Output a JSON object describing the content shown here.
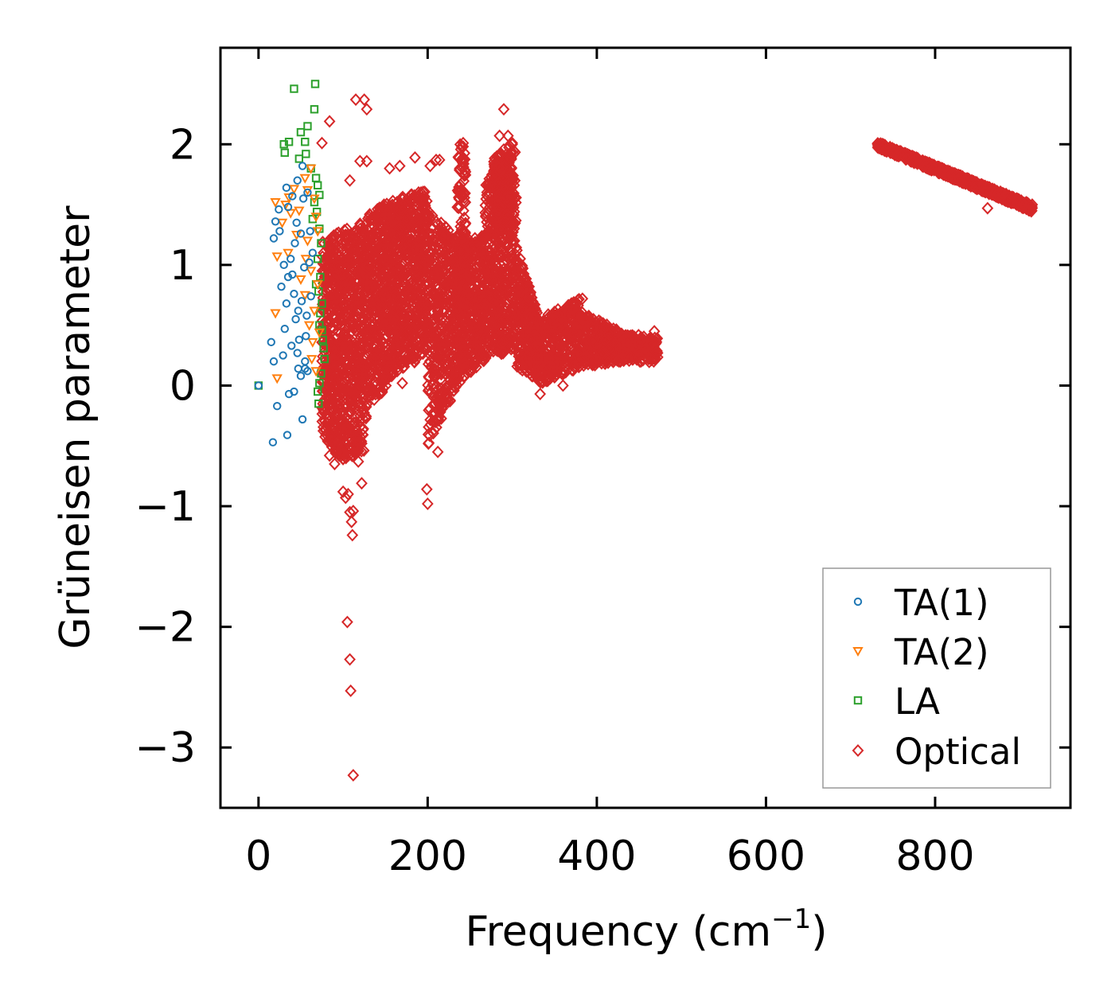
{
  "chart_data": {
    "type": "scatter",
    "title": "",
    "xlabel": "Frequency (cm",
    "xlabel_sup": "−1",
    "xlabel_tail": ")",
    "ylabel": "Grüneisen parameter",
    "xlim": [
      -45,
      960
    ],
    "ylim": [
      -3.5,
      2.8
    ],
    "xticks": [
      0,
      200,
      400,
      600,
      800
    ],
    "xtick_labels": [
      "0",
      "200",
      "400",
      "600",
      "800"
    ],
    "yticks": [
      -3,
      -2,
      -1,
      0,
      1,
      2
    ],
    "ytick_labels": [
      "−3",
      "−2",
      "−1",
      "0",
      "1",
      "2"
    ],
    "legend_position": "bottom-right",
    "series": [
      {
        "name": "TA(1)",
        "marker": "circle",
        "color": "#1f77b4",
        "points": [
          [
            0,
            0
          ],
          [
            17,
            -0.47
          ],
          [
            22,
            -0.17
          ],
          [
            34,
            -0.41
          ],
          [
            36,
            -0.07
          ],
          [
            42,
            -0.05
          ],
          [
            52,
            -0.28
          ],
          [
            47,
            0.14
          ],
          [
            15,
            0.36
          ],
          [
            18,
            0.2
          ],
          [
            27,
            0.82
          ],
          [
            30,
            1.0
          ],
          [
            33,
            0.68
          ],
          [
            35,
            0.9
          ],
          [
            18,
            1.22
          ],
          [
            20,
            1.36
          ],
          [
            25,
            1.28
          ],
          [
            24,
            1.46
          ],
          [
            35,
            1.48
          ],
          [
            33,
            1.64
          ],
          [
            40,
            1.57
          ],
          [
            46,
            1.7
          ],
          [
            52,
            1.82
          ],
          [
            53,
            1.55
          ],
          [
            58,
            1.6
          ],
          [
            45,
            1.35
          ],
          [
            50,
            1.26
          ],
          [
            38,
            1.05
          ],
          [
            42,
            0.76
          ],
          [
            44,
            0.55
          ],
          [
            48,
            0.38
          ],
          [
            46,
            0.27
          ],
          [
            50,
            0.08
          ],
          [
            55,
            0.14
          ],
          [
            40,
            0.92
          ],
          [
            60,
            1.02
          ],
          [
            62,
            0.74
          ],
          [
            57,
            0.58
          ],
          [
            55,
            0.2
          ],
          [
            58,
            0.12
          ],
          [
            29,
            0.25
          ],
          [
            31,
            0.47
          ],
          [
            64,
            1.1
          ],
          [
            61,
            1.28
          ],
          [
            54,
            0.98
          ],
          [
            43,
            1.18
          ],
          [
            47,
            0.62
          ],
          [
            51,
            0.7
          ],
          [
            39,
            0.33
          ],
          [
            56,
            0.41
          ]
        ]
      },
      {
        "name": "TA(2)",
        "marker": "triangle",
        "color": "#ff7f0e",
        "points": [
          [
            20,
            1.52
          ],
          [
            22,
            0.06
          ],
          [
            20,
            0.6
          ],
          [
            22,
            1.07
          ],
          [
            28,
            1.35
          ],
          [
            32,
            1.5
          ],
          [
            38,
            1.43
          ],
          [
            36,
            1.56
          ],
          [
            42,
            1.63
          ],
          [
            48,
            1.45
          ],
          [
            55,
            1.72
          ],
          [
            58,
            1.62
          ],
          [
            62,
            1.8
          ],
          [
            58,
            1.2
          ],
          [
            62,
            0.95
          ],
          [
            66,
            0.62
          ],
          [
            64,
            0.36
          ],
          [
            68,
            0.12
          ],
          [
            68,
            1.4
          ],
          [
            70,
            1.28
          ],
          [
            50,
            0.88
          ],
          [
            55,
            0.75
          ],
          [
            60,
            0.5
          ],
          [
            45,
            1.25
          ],
          [
            35,
            1.1
          ],
          [
            66,
            1.55
          ],
          [
            70,
            0.84
          ],
          [
            72,
            0.44
          ],
          [
            56,
            1.05
          ],
          [
            63,
            0.22
          ]
        ]
      },
      {
        "name": "LA",
        "marker": "square",
        "color": "#2ca02c",
        "points": [
          [
            0,
            0
          ],
          [
            42,
            2.46
          ],
          [
            67,
            2.5
          ],
          [
            66,
            2.29
          ],
          [
            58,
            2.15
          ],
          [
            50,
            2.1
          ],
          [
            55,
            2.02
          ],
          [
            30,
            2.0
          ],
          [
            36,
            2.02
          ],
          [
            31,
            1.93
          ],
          [
            48,
            1.88
          ],
          [
            56,
            1.92
          ],
          [
            62,
            1.8
          ],
          [
            68,
            1.72
          ],
          [
            70,
            1.66
          ],
          [
            72,
            1.58
          ],
          [
            69,
            1.44
          ],
          [
            72,
            1.3
          ],
          [
            74,
            1.18
          ],
          [
            70,
            1.05
          ],
          [
            73,
            0.9
          ],
          [
            71,
            0.78
          ],
          [
            75,
            0.68
          ],
          [
            73,
            0.6
          ],
          [
            72,
            0.5
          ],
          [
            76,
            0.38
          ],
          [
            78,
            0.22
          ],
          [
            74,
            0.1
          ],
          [
            72,
            0.02
          ],
          [
            70,
            -0.05
          ],
          [
            71,
            -0.15
          ],
          [
            66,
            1.52
          ],
          [
            64,
            1.38
          ],
          [
            68,
            0.84
          ],
          [
            75,
            0.46
          ],
          [
            77,
            0.31
          ]
        ]
      },
      {
        "name": "Optical",
        "marker": "diamond",
        "color": "#d62728",
        "points": [
          [
            115,
            2.37
          ],
          [
            125,
            2.37
          ],
          [
            128,
            2.29
          ],
          [
            290,
            2.29
          ],
          [
            285,
            2.07
          ],
          [
            295,
            2.07
          ],
          [
            84,
            2.19
          ],
          [
            75,
            2.01
          ],
          [
            120,
            1.86
          ],
          [
            128,
            1.86
          ],
          [
            155,
            1.8
          ],
          [
            185,
            1.89
          ],
          [
            210,
            1.87
          ],
          [
            214,
            1.87
          ],
          [
            203,
            1.82
          ],
          [
            167,
            1.82
          ],
          [
            108,
            1.7
          ],
          [
            100,
            -0.88
          ],
          [
            103,
            -0.93
          ],
          [
            106,
            -0.9
          ],
          [
            108,
            -1.05
          ],
          [
            112,
            -1.04
          ],
          [
            110,
            -1.13
          ],
          [
            111,
            -1.24
          ],
          [
            122,
            -0.81
          ],
          [
            105,
            -1.96
          ],
          [
            108,
            -2.27
          ],
          [
            109,
            -2.53
          ],
          [
            112,
            -3.23
          ],
          [
            199,
            -0.86
          ],
          [
            200,
            -0.98
          ],
          [
            212,
            -0.55
          ],
          [
            90,
            -0.65
          ],
          [
            98,
            -0.55
          ],
          [
            84,
            -0.58
          ],
          [
            118,
            -0.63
          ],
          [
            170,
            0.02
          ],
          [
            333,
            -0.07
          ],
          [
            360,
            0.0
          ],
          [
            395,
            0.22
          ],
          [
            468,
            0.45
          ],
          [
            465,
            0.32
          ],
          [
            383,
            0.72
          ],
          [
            300,
            2.0
          ],
          [
            242,
            2.01
          ],
          [
            862,
            1.47
          ],
          [
            903,
            1.48
          ],
          [
            913,
            1.46
          ]
        ]
      }
    ],
    "clusters": [
      {
        "x": [
          75,
          97
        ],
        "y_lo": [
          -0.4,
          -0.62
        ],
        "y_hi": [
          1.2,
          1.28
        ],
        "n": 420
      },
      {
        "x": [
          97,
          125
        ],
        "y_lo": [
          -0.62,
          -0.55
        ],
        "y_hi": [
          1.28,
          1.38
        ],
        "n": 520
      },
      {
        "x": [
          125,
          160
        ],
        "y_lo": [
          -0.3,
          0.1
        ],
        "y_hi": [
          1.4,
          1.55
        ],
        "n": 560
      },
      {
        "x": [
          160,
          200
        ],
        "y_lo": [
          0.1,
          0.25
        ],
        "y_hi": [
          1.55,
          1.62
        ],
        "n": 580
      },
      {
        "x": [
          200,
          240
        ],
        "y_lo": [
          -0.5,
          0.05
        ],
        "y_hi": [
          1.45,
          1.2
        ],
        "n": 520
      },
      {
        "x": [
          235,
          245
        ],
        "y_lo": [
          0.6,
          0.8
        ],
        "y_hi": [
          2.0,
          2.0
        ],
        "n": 120
      },
      {
        "x": [
          240,
          268
        ],
        "y_lo": [
          0.05,
          0.2
        ],
        "y_hi": [
          1.2,
          1.25
        ],
        "n": 360
      },
      {
        "x": [
          268,
          305
        ],
        "y_lo": [
          0.2,
          0.3
        ],
        "y_hi": [
          1.7,
          2.0
        ],
        "n": 560
      },
      {
        "x": [
          278,
          300
        ],
        "y_lo": [
          1.2,
          1.4
        ],
        "y_hi": [
          1.9,
          2.02
        ],
        "n": 180
      },
      {
        "x": [
          305,
          330
        ],
        "y_lo": [
          0.15,
          0.05
        ],
        "y_hi": [
          1.15,
          0.6
        ],
        "n": 300
      },
      {
        "x": [
          330,
          380
        ],
        "y_lo": [
          0.0,
          0.15
        ],
        "y_hi": [
          0.55,
          0.72
        ],
        "n": 380
      },
      {
        "x": [
          380,
          430
        ],
        "y_lo": [
          0.15,
          0.2
        ],
        "y_hi": [
          0.62,
          0.45
        ],
        "n": 300
      },
      {
        "x": [
          430,
          472
        ],
        "y_lo": [
          0.18,
          0.2
        ],
        "y_hi": [
          0.42,
          0.42
        ],
        "n": 200
      }
    ],
    "band": {
      "x": [
        732,
        915
      ],
      "y_start": [
        1.97,
        2.02
      ],
      "y_end": [
        1.44,
        1.5
      ],
      "n": 900
    }
  }
}
